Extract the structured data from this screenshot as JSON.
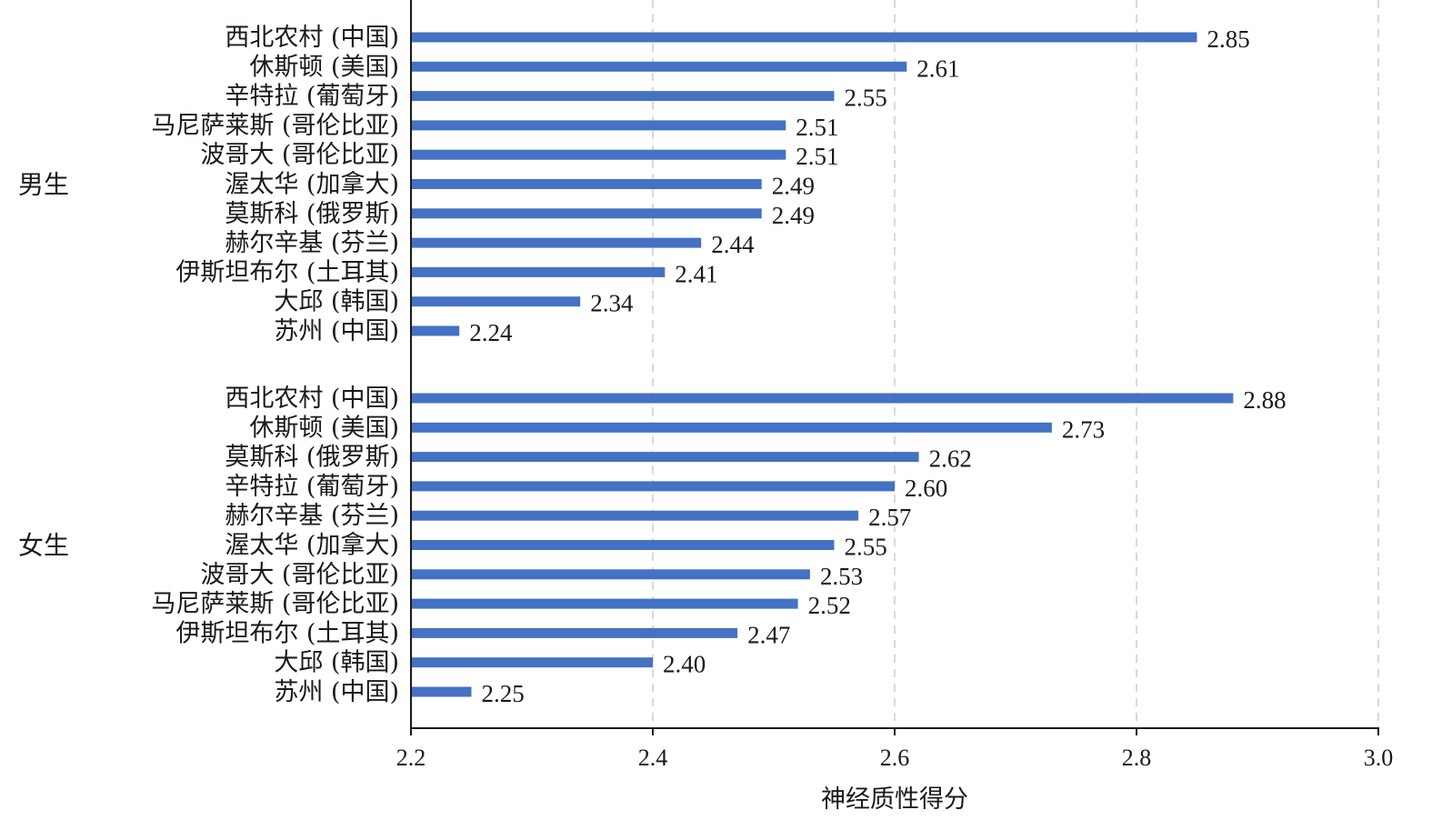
{
  "chart_data": {
    "type": "bar",
    "orientation": "horizontal",
    "xlabel": "神经质性得分",
    "xlim": [
      2.2,
      3.0
    ],
    "xticks": [
      "2.2",
      "2.4",
      "2.6",
      "2.8",
      "3.0"
    ],
    "grid": "x-dashed",
    "bar_color": "#4472c4",
    "groups": [
      {
        "name": "男生",
        "categories": [
          "西北农村 (中国)",
          "休斯顿 (美国)",
          "辛特拉 (葡萄牙)",
          "马尼萨莱斯 (哥伦比亚)",
          "波哥大 (哥伦比亚)",
          "渥太华 (加拿大)",
          "莫斯科 (俄罗斯)",
          "赫尔辛基 (芬兰)",
          "伊斯坦布尔 (土耳其)",
          "大邱 (韩国)",
          "苏州 (中国)"
        ],
        "values": [
          2.85,
          2.61,
          2.55,
          2.51,
          2.51,
          2.49,
          2.49,
          2.44,
          2.41,
          2.34,
          2.24
        ],
        "value_labels": [
          "2.85",
          "2.61",
          "2.55",
          "2.51",
          "2.51",
          "2.49",
          "2.49",
          "2.44",
          "2.41",
          "2.34",
          "2.24"
        ]
      },
      {
        "name": "女生",
        "categories": [
          "西北农村 (中国)",
          "休斯顿 (美国)",
          "莫斯科 (俄罗斯)",
          "辛特拉 (葡萄牙)",
          "赫尔辛基 (芬兰)",
          "渥太华 (加拿大)",
          "波哥大 (哥伦比亚)",
          "马尼萨莱斯 (哥伦比亚)",
          "伊斯坦布尔 (土耳其)",
          "大邱 (韩国)",
          "苏州 (中国)"
        ],
        "values": [
          2.88,
          2.73,
          2.62,
          2.6,
          2.57,
          2.55,
          2.53,
          2.52,
          2.47,
          2.4,
          2.25
        ],
        "value_labels": [
          "2.88",
          "2.73",
          "2.62",
          "2.60",
          "2.57",
          "2.55",
          "2.53",
          "2.52",
          "2.47",
          "2.40",
          "2.25"
        ]
      }
    ]
  }
}
